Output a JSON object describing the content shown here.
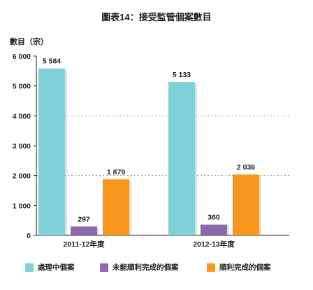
{
  "chart_data": {
    "type": "bar",
    "title": "圖表14：接受監管個案數目",
    "ylabel": "數目（宗）",
    "ylim": [
      0,
      6000
    ],
    "yticks": [
      0,
      1000,
      2000,
      3000,
      4000,
      5000,
      6000
    ],
    "ytick_labels": [
      "0",
      "1 000",
      "2 000",
      "3 000",
      "4 000",
      "5 000",
      "6 000"
    ],
    "grid": "dotted horizontal at 2000 and 4000",
    "legend_position": "bottom",
    "categories": [
      "2011-12年度",
      "2012-13年度"
    ],
    "series": [
      {
        "name": "處理中個案",
        "color": "#7fd1da",
        "values": [
          5584,
          5133
        ],
        "labels": [
          "5 584",
          "5 133"
        ]
      },
      {
        "name": "未能順利完成的個案",
        "color": "#8a6aa8",
        "values": [
          297,
          360
        ],
        "labels": [
          "297",
          "360"
        ]
      },
      {
        "name": "順利完成的個案",
        "color": "#f7971e",
        "values": [
          1879,
          2036
        ],
        "labels": [
          "1 879",
          "2 036"
        ]
      }
    ]
  }
}
